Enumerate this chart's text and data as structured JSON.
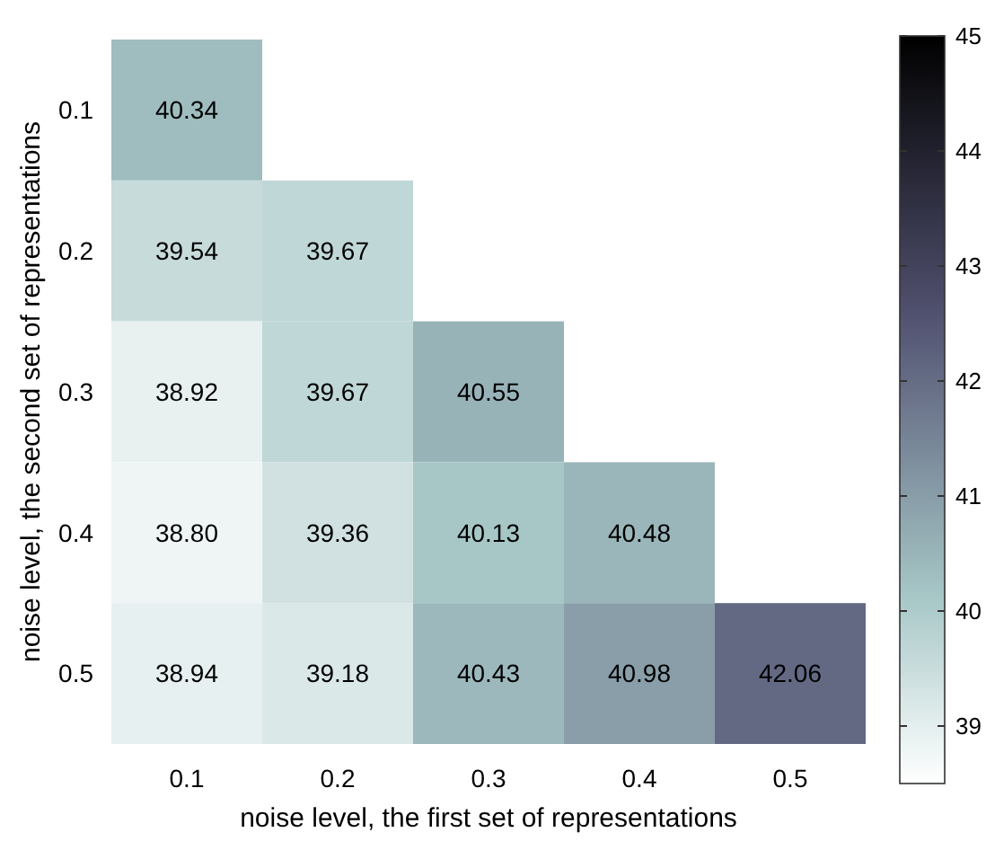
{
  "chart_data": {
    "type": "heatmap",
    "xlabel": "noise level, the first set of representations",
    "ylabel": "noise level, the second set of representations",
    "categories": [
      "0.1",
      "0.2",
      "0.3",
      "0.4",
      "0.5"
    ],
    "y_categories": [
      "0.1",
      "0.2",
      "0.3",
      "0.4",
      "0.5"
    ],
    "cells": [
      [
        40.34,
        null,
        null,
        null,
        null
      ],
      [
        39.54,
        39.67,
        null,
        null,
        null
      ],
      [
        38.92,
        39.67,
        40.55,
        null,
        null
      ],
      [
        38.8,
        39.36,
        40.13,
        40.48,
        null
      ],
      [
        38.94,
        39.18,
        40.43,
        40.98,
        42.06
      ]
    ],
    "cell_labels": [
      [
        "40.34",
        null,
        null,
        null,
        null
      ],
      [
        "39.54",
        "39.67",
        null,
        null,
        null
      ],
      [
        "38.92",
        "39.67",
        "40.55",
        null,
        null
      ],
      [
        "38.80",
        "39.36",
        "40.13",
        "40.48",
        null
      ],
      [
        "38.94",
        "39.18",
        "40.43",
        "40.98",
        "42.06"
      ]
    ],
    "clim": [
      38.5,
      45
    ],
    "cticks": [
      39,
      40,
      41,
      42,
      43,
      44,
      45
    ]
  }
}
